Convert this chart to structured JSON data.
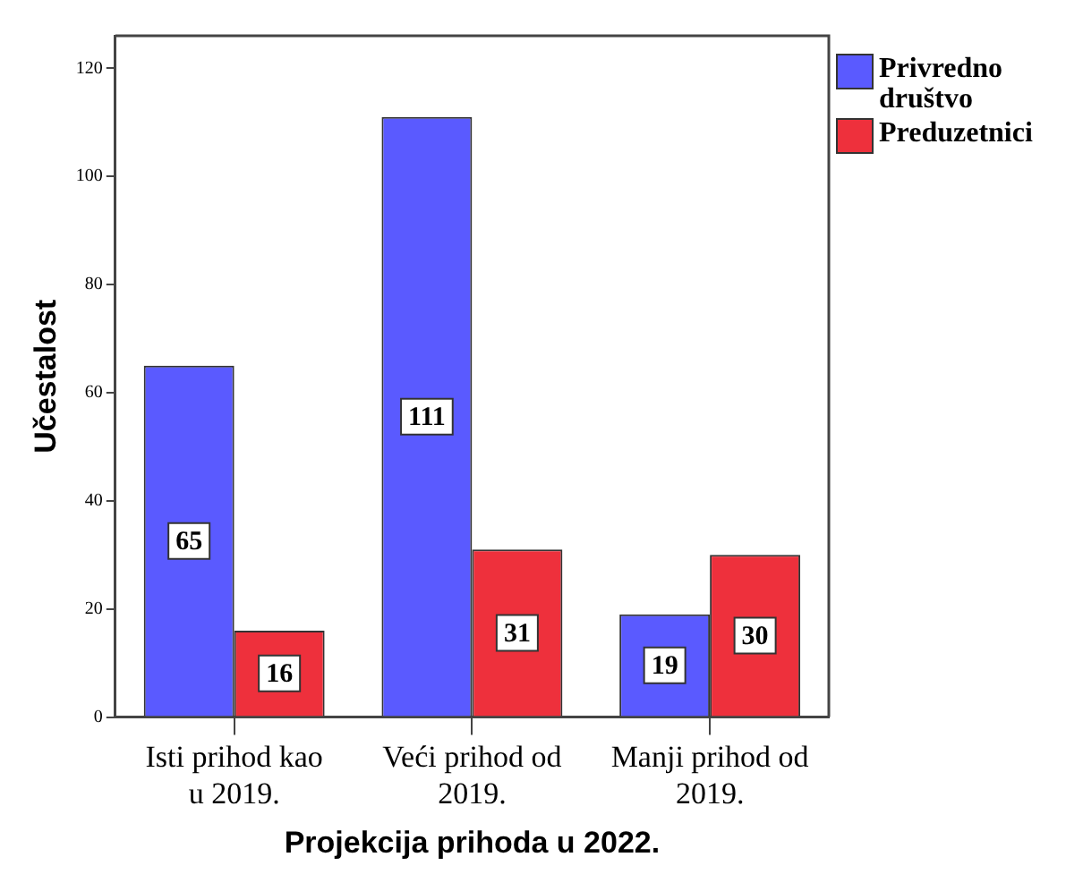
{
  "chart_data": {
    "type": "bar",
    "xlabel": "Projekcija prihoda u 2022.",
    "ylabel": "Učestalost",
    "categories": [
      "Isti prihod kao u 2019.",
      "Veći prihod od 2019.",
      "Manji prihod od 2019."
    ],
    "series": [
      {
        "name": "Privredno društvo",
        "color": "#5a5aff",
        "values": [
          65,
          111,
          19
        ]
      },
      {
        "name": "Preduzetnici",
        "color": "#ee303c",
        "values": [
          16,
          31,
          30
        ]
      }
    ],
    "ylim": [
      0,
      126
    ],
    "yticks": [
      0,
      20,
      40,
      60,
      80,
      100,
      120
    ],
    "grid": false,
    "legend": "top right",
    "data_labels": true
  }
}
